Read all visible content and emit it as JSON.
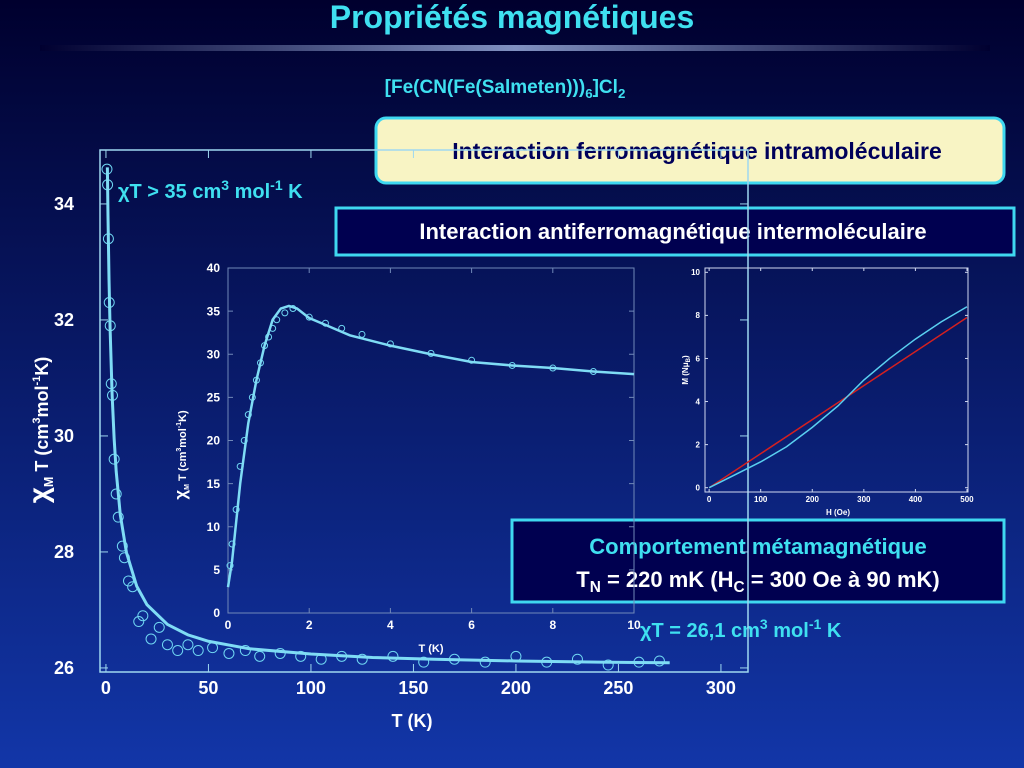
{
  "slide": {
    "title": "Propriétés magnétiques",
    "subtitle": [
      "[Fe(CN(Fe(Salmeten)))",
      "6",
      "]Cl",
      "2"
    ],
    "boxes": [
      "Interaction ferromagnétique intramoléculaire",
      "Interaction antiferromagnétique intermoléculaire"
    ],
    "box3": [
      "Comportement métamagnétique",
      [
        "T",
        "N",
        " = 220 mK (H",
        "C",
        " = 300 Oe à 90 mK)"
      ]
    ],
    "annotations": [
      [
        "χT > 35 cm",
        "3",
        " mol",
        "-1",
        " K"
      ],
      [
        "χT = 26,1 cm",
        "3",
        " mol",
        "-1",
        " K"
      ]
    ]
  },
  "chart_data": [
    {
      "type": "scatter",
      "xlabel": "T (K)",
      "ylabel": [
        "χ",
        "M",
        " T  (cm",
        "3",
        "mol",
        "-1",
        "K)"
      ],
      "xlim": [
        -2.9,
        313.2
      ],
      "ylim": [
        25.93,
        34.93
      ],
      "xticks": [
        0,
        50,
        100,
        150,
        200,
        250,
        300
      ],
      "yticks": [
        26,
        28,
        30,
        32,
        34
      ],
      "series": [
        {
          "style": "markers",
          "color": "#6fd6f2",
          "x": [
            0.5,
            0.8,
            1.2,
            1.6,
            2.1,
            2.6,
            3.2,
            4,
            5,
            6,
            8,
            9,
            11,
            13,
            16,
            18,
            22,
            26,
            30,
            35,
            40,
            45,
            52,
            60,
            68,
            75,
            85,
            95,
            105,
            115,
            125,
            140,
            155,
            170,
            185,
            200,
            215,
            230,
            245,
            260,
            270
          ],
          "values": [
            34.6,
            34.33,
            33.4,
            32.3,
            31.9,
            30.9,
            30.7,
            29.6,
            29.0,
            28.6,
            28.1,
            27.9,
            27.5,
            27.4,
            26.8,
            26.9,
            26.5,
            26.7,
            26.4,
            26.3,
            26.4,
            26.3,
            26.35,
            26.25,
            26.3,
            26.2,
            26.25,
            26.2,
            26.15,
            26.2,
            26.15,
            26.2,
            26.1,
            26.15,
            26.1,
            26.2,
            26.1,
            26.15,
            26.05,
            26.1,
            26.12
          ]
        },
        {
          "style": "line",
          "color": "#7fdcf5",
          "x": [
            0.7,
            1,
            1.5,
            2,
            3,
            4,
            5,
            7,
            10,
            15,
            20,
            30,
            40,
            50,
            70,
            100,
            130,
            160,
            200,
            240,
            275
          ],
          "values": [
            34.63,
            33.79,
            32.7,
            31.88,
            30.72,
            29.95,
            29.39,
            28.64,
            27.99,
            27.41,
            27.09,
            26.75,
            26.57,
            26.46,
            26.33,
            26.24,
            26.18,
            26.15,
            26.12,
            26.1,
            26.09
          ]
        }
      ]
    },
    {
      "type": "scatter",
      "xlabel": "T (K)",
      "ylabel": [
        "χ",
        "M",
        " T  (cm",
        "3",
        "mol",
        "-1",
        "K)"
      ],
      "xlim": [
        0,
        10
      ],
      "ylim": [
        0,
        40
      ],
      "xticks": [
        0,
        2,
        4,
        6,
        8,
        10
      ],
      "yticks": [
        0,
        5,
        10,
        15,
        20,
        25,
        30,
        35,
        40
      ],
      "series": [
        {
          "style": "markers",
          "color": "#6fd6f2",
          "x": [
            0.05,
            0.1,
            0.2,
            0.3,
            0.4,
            0.5,
            0.6,
            0.7,
            0.8,
            0.9,
            1.0,
            1.1,
            1.2,
            1.4,
            1.6,
            2.0,
            2.4,
            2.8,
            3.3,
            4,
            5,
            6,
            7,
            8,
            9
          ],
          "values": [
            5.5,
            8,
            12,
            17,
            20,
            23,
            25,
            27,
            29,
            31,
            32,
            33,
            34,
            34.8,
            35.3,
            34.3,
            33.6,
            33,
            32.3,
            31.2,
            30.1,
            29.3,
            28.7,
            28.4,
            28.0
          ]
        },
        {
          "style": "line",
          "color": "#7fdcf5",
          "x": [
            0,
            0.1,
            0.3,
            0.5,
            0.7,
            0.9,
            1.1,
            1.3,
            1.5,
            1.7,
            2,
            2.5,
            3,
            4,
            5,
            6,
            7,
            8,
            9,
            10
          ],
          "values": [
            3,
            6,
            15,
            22,
            27,
            31,
            34,
            35.3,
            35.6,
            35.3,
            34.2,
            33.2,
            32.2,
            31,
            30,
            29.1,
            28.7,
            28.4,
            28,
            27.7
          ]
        }
      ]
    },
    {
      "type": "line",
      "xlabel": "H  (Oe)",
      "ylabel": [
        "M  (Nμ",
        "B",
        ")"
      ],
      "xlim": [
        -8,
        502
      ],
      "ylim": [
        -0.2,
        10.2
      ],
      "xticks": [
        0,
        100,
        200,
        300,
        400,
        500
      ],
      "yticks": [
        0,
        2,
        4,
        6,
        8,
        10
      ],
      "series": [
        {
          "style": "line",
          "color": "#d42020",
          "x": [
            0,
            500
          ],
          "values": [
            0,
            7.9
          ]
        },
        {
          "style": "line",
          "color": "#5ad0f0",
          "x": [
            0,
            50,
            100,
            150,
            200,
            250,
            300,
            350,
            400,
            450,
            500
          ],
          "values": [
            0,
            0.6,
            1.2,
            1.9,
            2.8,
            3.8,
            5.0,
            6.0,
            6.9,
            7.7,
            8.4
          ]
        }
      ]
    }
  ]
}
